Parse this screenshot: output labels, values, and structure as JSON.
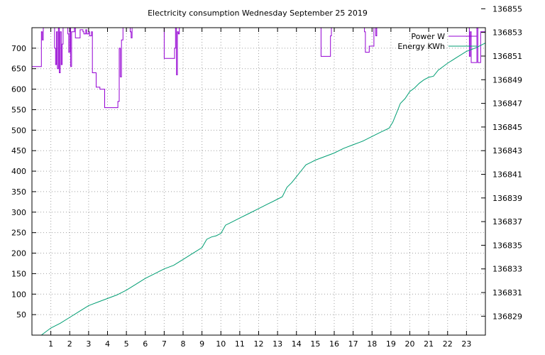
{
  "chart_data": {
    "type": "line",
    "title": "Electricity consumption Wednesday September 25 2019",
    "xlabel": "",
    "ylabel": "",
    "y2label": "",
    "grid": true,
    "legend_position": "top-right",
    "xlim": [
      0,
      24
    ],
    "ylim": [
      0,
      750
    ],
    "y2lim": [
      136827.4,
      136853.4
    ],
    "x_ticks": [
      1,
      2,
      3,
      4,
      5,
      6,
      7,
      8,
      9,
      10,
      11,
      12,
      13,
      14,
      15,
      16,
      17,
      18,
      19,
      20,
      21,
      22,
      23
    ],
    "y_ticks": [
      50,
      100,
      150,
      200,
      250,
      300,
      350,
      400,
      450,
      500,
      550,
      600,
      650,
      700
    ],
    "y2_ticks": [
      136829,
      136831,
      136833,
      136835,
      136837,
      136839,
      136841,
      136843,
      136845,
      136847,
      136849,
      136851,
      136853,
      136855
    ],
    "series": [
      {
        "name": "Power W",
        "axis": "y",
        "color": "#9400d3",
        "step": true,
        "x": [
          0.0,
          0.45,
          0.5,
          0.55,
          0.6,
          1.15,
          1.2,
          1.25,
          1.3,
          1.35,
          1.4,
          1.45,
          1.5,
          1.55,
          1.6,
          1.65,
          1.9,
          1.95,
          2.0,
          2.05,
          2.1,
          2.25,
          2.3,
          2.5,
          2.55,
          2.7,
          2.75,
          2.85,
          2.9,
          3.0,
          3.05,
          3.15,
          3.2,
          3.35,
          3.4,
          3.6,
          3.85,
          4.25,
          4.45,
          4.55,
          4.62,
          4.68,
          4.74,
          4.82,
          5.2,
          5.25,
          5.3,
          6.95,
          7.0,
          7.05,
          7.5,
          7.55,
          7.6,
          7.65,
          7.7,
          7.75,
          7.8,
          7.9,
          15.3,
          15.35,
          15.75,
          15.8,
          15.85,
          16.3,
          17.6,
          17.65,
          17.8,
          17.85,
          18.05,
          18.1,
          18.2,
          18.25,
          23.1,
          23.15,
          23.2,
          23.25,
          23.3,
          23.35,
          23.55,
          23.6,
          23.7,
          23.75,
          24.0
        ],
        "values": [
          655,
          655,
          740,
          720,
          760,
          760,
          700,
          660,
          740,
          650,
          750,
          640,
          740,
          660,
          710,
          750,
          735,
          690,
          760,
          655,
          740,
          760,
          725,
          725,
          745,
          740,
          735,
          745,
          735,
          740,
          730,
          740,
          640,
          640,
          605,
          600,
          555,
          555,
          555,
          570,
          700,
          630,
          720,
          760,
          740,
          725,
          760,
          760,
          675,
          675,
          675,
          700,
          760,
          635,
          740,
          735,
          760,
          760,
          680,
          680,
          680,
          730,
          760,
          760,
          740,
          690,
          690,
          705,
          705,
          760,
          730,
          760,
          760,
          680,
          740,
          665,
          665,
          665,
          760,
          665,
          665,
          740,
          740
        ]
      },
      {
        "name": "Energy KWh",
        "axis": "y2",
        "color": "#009e73",
        "step": false,
        "x": [
          0.5,
          1.0,
          1.5,
          2.0,
          2.5,
          3.0,
          3.5,
          4.0,
          4.5,
          5.0,
          5.5,
          6.0,
          6.5,
          7.0,
          7.5,
          8.0,
          8.5,
          9.0,
          9.25,
          9.5,
          9.75,
          10.0,
          10.25,
          10.5,
          11.0,
          11.5,
          12.0,
          12.5,
          13.0,
          13.25,
          13.5,
          13.75,
          14.0,
          14.25,
          14.5,
          14.75,
          15.0,
          15.5,
          16.0,
          16.5,
          17.0,
          17.5,
          18.0,
          18.5,
          18.9,
          19.1,
          19.3,
          19.5,
          19.75,
          20.0,
          20.25,
          20.5,
          20.75,
          21.0,
          21.25,
          21.5,
          21.75,
          22.0,
          22.5,
          23.0,
          23.5,
          24.0
        ],
        "values": [
          136827.4,
          136828.0,
          136828.4,
          136828.9,
          136829.4,
          136829.9,
          136830.2,
          136830.5,
          136830.8,
          136831.2,
          136831.7,
          136832.2,
          136832.6,
          136833.0,
          136833.3,
          136833.8,
          136834.3,
          136834.8,
          136835.5,
          136835.7,
          136835.8,
          136836.0,
          136836.7,
          136836.9,
          136837.3,
          136837.7,
          136838.1,
          136838.5,
          136838.9,
          136839.1,
          136839.9,
          136840.3,
          136840.8,
          136841.3,
          136841.8,
          136842.0,
          136842.2,
          136842.5,
          136842.8,
          136843.2,
          136843.5,
          136843.8,
          136844.2,
          136844.6,
          136844.9,
          136845.4,
          136846.2,
          136847.0,
          136847.4,
          136848.0,
          136848.3,
          136848.7,
          136849.0,
          136849.2,
          136849.3,
          136849.8,
          136850.1,
          136850.4,
          136850.9,
          136851.4,
          136851.7,
          136852.1
        ]
      }
    ]
  }
}
